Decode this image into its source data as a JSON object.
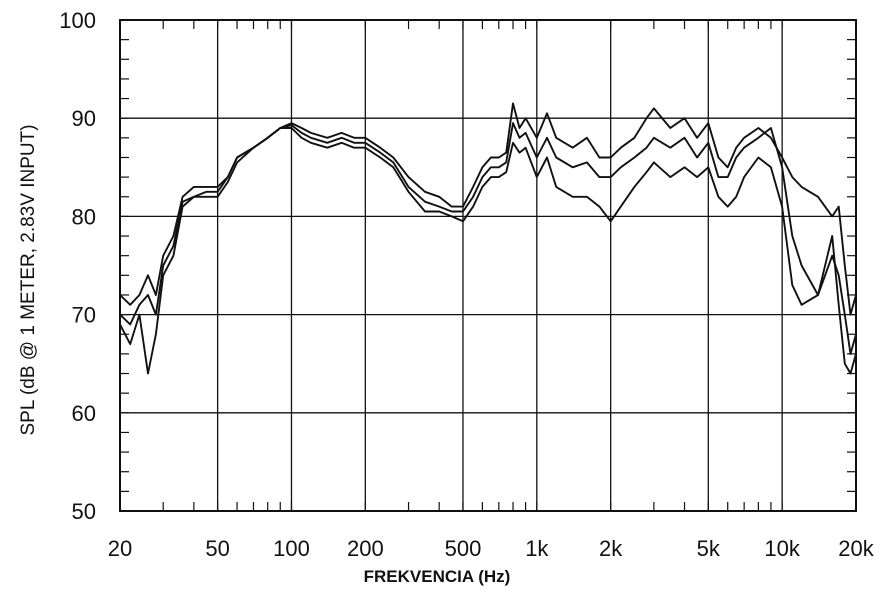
{
  "chart_data": {
    "type": "line",
    "title": "",
    "xlabel": "FREKVENCIA (Hz)",
    "ylabel": "SPL (dB @ 1 METER, 2.83V INPUT)",
    "xscale": "log",
    "xlim": [
      20,
      20000
    ],
    "ylim": [
      50,
      100
    ],
    "grid": true,
    "legend": "none",
    "line_color": "#111111",
    "x_ticks": [
      {
        "value": 20,
        "label": "20"
      },
      {
        "value": 50,
        "label": "50"
      },
      {
        "value": 100,
        "label": "100"
      },
      {
        "value": 200,
        "label": "200"
      },
      {
        "value": 500,
        "label": "500"
      },
      {
        "value": 1000,
        "label": "1k"
      },
      {
        "value": 2000,
        "label": "2k"
      },
      {
        "value": 5000,
        "label": "5k"
      },
      {
        "value": 10000,
        "label": "10k"
      },
      {
        "value": 20000,
        "label": "20k"
      }
    ],
    "y_ticks": [
      {
        "value": 50,
        "label": "50"
      },
      {
        "value": 60,
        "label": "60"
      },
      {
        "value": 70,
        "label": "70"
      },
      {
        "value": 80,
        "label": "80"
      },
      {
        "value": 90,
        "label": "90"
      },
      {
        "value": 100,
        "label": "100"
      }
    ],
    "series": [
      {
        "x": [
          20,
          22,
          24,
          26,
          28,
          30,
          33,
          36,
          40,
          45,
          50,
          55,
          60,
          70,
          80,
          90,
          100,
          110,
          120,
          140,
          160,
          180,
          200,
          230,
          260,
          300,
          350,
          400,
          450,
          500,
          550,
          600,
          650,
          700,
          750,
          800,
          850,
          900,
          1000,
          1100,
          1200,
          1400,
          1600,
          1800,
          2000,
          2200,
          2500,
          2800,
          3000,
          3500,
          4000,
          4500,
          5000,
          5500,
          6000,
          6500,
          7000,
          8000,
          9000,
          10000,
          11000,
          12000,
          14000,
          16000,
          17000,
          18000,
          19000,
          20000
        ],
        "y": [
          72,
          71,
          72,
          74,
          72,
          76,
          78,
          82,
          83,
          83,
          83,
          84,
          86,
          87,
          88,
          89,
          89.5,
          89,
          88.5,
          88,
          88.5,
          88,
          88,
          87,
          86,
          84,
          82.5,
          82,
          81,
          81,
          83,
          85,
          86,
          86,
          86.5,
          91.5,
          89,
          90,
          88,
          90.5,
          88,
          87,
          88,
          86,
          86,
          87,
          88,
          90,
          91,
          89,
          90,
          88,
          89.5,
          86,
          85,
          87,
          88,
          89,
          88,
          86,
          84,
          83,
          82,
          80,
          81,
          75,
          70,
          72
        ]
      },
      {
        "x": [
          20,
          22,
          24,
          26,
          28,
          30,
          33,
          36,
          40,
          45,
          50,
          55,
          60,
          70,
          80,
          90,
          100,
          110,
          120,
          140,
          160,
          180,
          200,
          230,
          260,
          300,
          350,
          400,
          450,
          500,
          550,
          600,
          650,
          700,
          750,
          800,
          850,
          900,
          1000,
          1100,
          1200,
          1400,
          1600,
          1800,
          2000,
          2200,
          2500,
          2800,
          3000,
          3500,
          4000,
          4500,
          5000,
          5500,
          6000,
          6500,
          7000,
          8000,
          9000,
          10000,
          11000,
          12000,
          14000,
          16000,
          17000,
          18000,
          19000,
          20000
        ],
        "y": [
          70,
          69,
          71,
          72,
          70,
          75,
          77,
          81.5,
          82,
          82.5,
          82.5,
          84,
          86,
          87,
          88,
          89,
          89.3,
          88.5,
          88,
          87.5,
          88,
          87.5,
          87.5,
          86.5,
          85.5,
          83,
          81.5,
          81,
          80.5,
          80.5,
          82,
          84,
          85,
          85,
          85.5,
          89.5,
          88,
          88.5,
          86,
          88,
          86,
          85,
          85.5,
          84,
          84,
          85,
          86,
          87,
          88,
          87,
          88,
          86,
          87.5,
          84,
          84,
          86,
          87,
          88,
          89,
          85,
          78,
          75,
          72,
          76,
          74,
          70,
          66,
          68
        ]
      },
      {
        "x": [
          20,
          22,
          24,
          26,
          28,
          30,
          33,
          36,
          40,
          45,
          50,
          55,
          60,
          70,
          80,
          90,
          100,
          110,
          120,
          140,
          160,
          180,
          200,
          230,
          260,
          300,
          350,
          400,
          450,
          500,
          550,
          600,
          650,
          700,
          750,
          800,
          850,
          900,
          1000,
          1100,
          1200,
          1400,
          1600,
          1800,
          2000,
          2200,
          2500,
          2800,
          3000,
          3500,
          4000,
          4500,
          5000,
          5500,
          6000,
          6500,
          7000,
          8000,
          9000,
          10000,
          11000,
          12000,
          14000,
          16000,
          17000,
          18000,
          19000,
          20000
        ],
        "y": [
          69,
          67,
          70,
          64,
          68,
          74,
          76,
          81,
          82,
          82,
          82,
          83.5,
          85.5,
          87,
          88,
          89,
          89,
          88,
          87.5,
          87,
          87.5,
          87,
          87,
          86,
          85,
          82.5,
          80.5,
          80.5,
          80,
          79.5,
          81,
          83,
          84,
          84,
          84.5,
          87.5,
          86.5,
          87,
          84,
          86,
          83,
          82,
          82,
          81,
          79.5,
          81,
          83,
          84.5,
          85.5,
          84,
          85,
          84,
          85,
          82,
          81,
          82,
          84,
          86,
          85,
          81,
          73,
          71,
          72,
          78,
          71,
          65,
          64,
          66
        ]
      }
    ]
  }
}
